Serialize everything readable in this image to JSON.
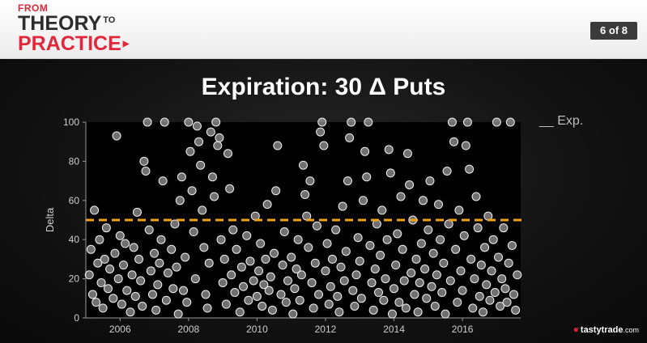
{
  "header": {
    "brand_from": "FROM",
    "brand_theory": "THEORY",
    "brand_to": "TO",
    "brand_practice": "PRACTICE",
    "pager": "6 of 8"
  },
  "footer": {
    "logo_text": "tastytrade",
    "logo_suffix": ".com"
  },
  "colors": {
    "accent": "#e0283c",
    "reference_line": "#f0a020",
    "points": "#d0d0d0"
  },
  "chart_data": {
    "type": "scatter",
    "title": "Expiration: 30 Δ Puts",
    "ylabel": "Delta",
    "xlabel": "",
    "xlim": [
      2005,
      2017.7
    ],
    "ylim": [
      0,
      100
    ],
    "xticks": [
      "2006",
      "2008",
      "2010",
      "2012",
      "2014",
      "2016"
    ],
    "xtick_values": [
      2006,
      2008,
      2010,
      2012,
      2014,
      2016
    ],
    "yticks": [
      "0",
      "20",
      "40",
      "60",
      "80",
      "100"
    ],
    "ytick_values": [
      0,
      20,
      40,
      60,
      80,
      100
    ],
    "reference_line": {
      "y": 50,
      "label": "__ Exp.",
      "style": "dashed"
    },
    "legend_position": "top-right",
    "grid": false,
    "points": [
      [
        2005.1,
        22
      ],
      [
        2005.15,
        35
      ],
      [
        2005.2,
        12
      ],
      [
        2005.25,
        55
      ],
      [
        2005.3,
        8
      ],
      [
        2005.35,
        28
      ],
      [
        2005.4,
        40
      ],
      [
        2005.45,
        18
      ],
      [
        2005.5,
        5
      ],
      [
        2005.55,
        30
      ],
      [
        2005.6,
        46
      ],
      [
        2005.65,
        15
      ],
      [
        2005.7,
        25
      ],
      [
        2005.8,
        10
      ],
      [
        2005.85,
        33
      ],
      [
        2005.9,
        93
      ],
      [
        2005.95,
        20
      ],
      [
        2006.0,
        42
      ],
      [
        2006.05,
        7
      ],
      [
        2006.1,
        27
      ],
      [
        2006.15,
        38
      ],
      [
        2006.2,
        14
      ],
      [
        2006.3,
        3
      ],
      [
        2006.35,
        22
      ],
      [
        2006.4,
        36
      ],
      [
        2006.45,
        11
      ],
      [
        2006.5,
        54
      ],
      [
        2006.55,
        30
      ],
      [
        2006.6,
        19
      ],
      [
        2006.65,
        6
      ],
      [
        2006.7,
        80
      ],
      [
        2006.75,
        75
      ],
      [
        2006.8,
        100
      ],
      [
        2006.85,
        45
      ],
      [
        2006.9,
        24
      ],
      [
        2006.95,
        12
      ],
      [
        2007.0,
        33
      ],
      [
        2007.05,
        4
      ],
      [
        2007.1,
        17
      ],
      [
        2007.15,
        28
      ],
      [
        2007.2,
        40
      ],
      [
        2007.25,
        70
      ],
      [
        2007.3,
        100
      ],
      [
        2007.35,
        9
      ],
      [
        2007.4,
        23
      ],
      [
        2007.5,
        35
      ],
      [
        2007.55,
        15
      ],
      [
        2007.6,
        48
      ],
      [
        2007.65,
        26
      ],
      [
        2007.7,
        2
      ],
      [
        2007.75,
        60
      ],
      [
        2007.8,
        72
      ],
      [
        2007.85,
        14
      ],
      [
        2007.9,
        31
      ],
      [
        2007.95,
        8
      ],
      [
        2008.0,
        100
      ],
      [
        2008.05,
        85
      ],
      [
        2008.1,
        65
      ],
      [
        2008.15,
        44
      ],
      [
        2008.2,
        20
      ],
      [
        2008.25,
        98
      ],
      [
        2008.3,
        90
      ],
      [
        2008.35,
        78
      ],
      [
        2008.4,
        55
      ],
      [
        2008.45,
        36
      ],
      [
        2008.5,
        12
      ],
      [
        2008.55,
        5
      ],
      [
        2008.6,
        28
      ],
      [
        2008.65,
        95
      ],
      [
        2008.7,
        72
      ],
      [
        2008.75,
        62
      ],
      [
        2008.8,
        100
      ],
      [
        2008.85,
        88
      ],
      [
        2008.9,
        92
      ],
      [
        2008.95,
        40
      ],
      [
        2009.0,
        18
      ],
      [
        2009.05,
        30
      ],
      [
        2009.1,
        7
      ],
      [
        2009.15,
        84
      ],
      [
        2009.2,
        66
      ],
      [
        2009.25,
        22
      ],
      [
        2009.3,
        45
      ],
      [
        2009.35,
        13
      ],
      [
        2009.4,
        35
      ],
      [
        2009.5,
        3
      ],
      [
        2009.55,
        26
      ],
      [
        2009.6,
        16
      ],
      [
        2009.7,
        42
      ],
      [
        2009.75,
        9
      ],
      [
        2009.8,
        29
      ],
      [
        2009.9,
        19
      ],
      [
        2009.95,
        52
      ],
      [
        2010.0,
        11
      ],
      [
        2010.05,
        24
      ],
      [
        2010.1,
        38
      ],
      [
        2010.15,
        6
      ],
      [
        2010.2,
        17
      ],
      [
        2010.25,
        30
      ],
      [
        2010.3,
        58
      ],
      [
        2010.35,
        14
      ],
      [
        2010.4,
        21
      ],
      [
        2010.45,
        4
      ],
      [
        2010.5,
        33
      ],
      [
        2010.55,
        65
      ],
      [
        2010.6,
        88
      ],
      [
        2010.7,
        12
      ],
      [
        2010.75,
        27
      ],
      [
        2010.8,
        44
      ],
      [
        2010.85,
        8
      ],
      [
        2010.9,
        19
      ],
      [
        2011.0,
        31
      ],
      [
        2011.05,
        2
      ],
      [
        2011.1,
        15
      ],
      [
        2011.15,
        25
      ],
      [
        2011.2,
        40
      ],
      [
        2011.25,
        9
      ],
      [
        2011.3,
        22
      ],
      [
        2011.35,
        78
      ],
      [
        2011.4,
        63
      ],
      [
        2011.45,
        52
      ],
      [
        2011.5,
        36
      ],
      [
        2011.55,
        70
      ],
      [
        2011.6,
        18
      ],
      [
        2011.65,
        5
      ],
      [
        2011.7,
        28
      ],
      [
        2011.75,
        47
      ],
      [
        2011.8,
        12
      ],
      [
        2011.85,
        95
      ],
      [
        2011.9,
        100
      ],
      [
        2011.95,
        88
      ],
      [
        2012.0,
        24
      ],
      [
        2012.05,
        38
      ],
      [
        2012.1,
        7
      ],
      [
        2012.15,
        16
      ],
      [
        2012.2,
        30
      ],
      [
        2012.3,
        45
      ],
      [
        2012.35,
        11
      ],
      [
        2012.4,
        3
      ],
      [
        2012.45,
        26
      ],
      [
        2012.5,
        57
      ],
      [
        2012.55,
        19
      ],
      [
        2012.6,
        34
      ],
      [
        2012.65,
        70
      ],
      [
        2012.7,
        92
      ],
      [
        2012.75,
        100
      ],
      [
        2012.8,
        14
      ],
      [
        2012.85,
        6
      ],
      [
        2012.9,
        22
      ],
      [
        2012.95,
        41
      ],
      [
        2013.0,
        29
      ],
      [
        2013.05,
        10
      ],
      [
        2013.1,
        60
      ],
      [
        2013.15,
        85
      ],
      [
        2013.2,
        72
      ],
      [
        2013.25,
        100
      ],
      [
        2013.3,
        37
      ],
      [
        2013.35,
        18
      ],
      [
        2013.4,
        4
      ],
      [
        2013.45,
        25
      ],
      [
        2013.5,
        48
      ],
      [
        2013.55,
        13
      ],
      [
        2013.6,
        32
      ],
      [
        2013.65,
        55
      ],
      [
        2013.7,
        9
      ],
      [
        2013.75,
        20
      ],
      [
        2013.8,
        40
      ],
      [
        2013.85,
        86
      ],
      [
        2013.9,
        74
      ],
      [
        2013.95,
        2
      ],
      [
        2014.0,
        15
      ],
      [
        2014.05,
        27
      ],
      [
        2014.1,
        43
      ],
      [
        2014.15,
        8
      ],
      [
        2014.2,
        62
      ],
      [
        2014.25,
        35
      ],
      [
        2014.3,
        19
      ],
      [
        2014.35,
        5
      ],
      [
        2014.4,
        84
      ],
      [
        2014.45,
        68
      ],
      [
        2014.5,
        23
      ],
      [
        2014.55,
        50
      ],
      [
        2014.6,
        12
      ],
      [
        2014.65,
        30
      ],
      [
        2014.7,
        3
      ],
      [
        2014.75,
        18
      ],
      [
        2014.8,
        38
      ],
      [
        2014.85,
        60
      ],
      [
        2014.9,
        25
      ],
      [
        2014.95,
        10
      ],
      [
        2015.0,
        45
      ],
      [
        2015.05,
        70
      ],
      [
        2015.1,
        16
      ],
      [
        2015.15,
        33
      ],
      [
        2015.2,
        6
      ],
      [
        2015.25,
        22
      ],
      [
        2015.3,
        58
      ],
      [
        2015.35,
        40
      ],
      [
        2015.4,
        13
      ],
      [
        2015.45,
        28
      ],
      [
        2015.5,
        2
      ],
      [
        2015.55,
        75
      ],
      [
        2015.6,
        48
      ],
      [
        2015.65,
        19
      ],
      [
        2015.7,
        100
      ],
      [
        2015.75,
        90
      ],
      [
        2015.8,
        35
      ],
      [
        2015.85,
        8
      ],
      [
        2015.9,
        55
      ],
      [
        2015.95,
        24
      ],
      [
        2016.0,
        14
      ],
      [
        2016.05,
        42
      ],
      [
        2016.1,
        88
      ],
      [
        2016.15,
        100
      ],
      [
        2016.2,
        76
      ],
      [
        2016.25,
        30
      ],
      [
        2016.3,
        5
      ],
      [
        2016.35,
        20
      ],
      [
        2016.4,
        62
      ],
      [
        2016.45,
        46
      ],
      [
        2016.5,
        11
      ],
      [
        2016.55,
        27
      ],
      [
        2016.6,
        3
      ],
      [
        2016.65,
        36
      ],
      [
        2016.7,
        17
      ],
      [
        2016.75,
        52
      ],
      [
        2016.8,
        9
      ],
      [
        2016.85,
        24
      ],
      [
        2016.9,
        40
      ],
      [
        2016.95,
        13
      ],
      [
        2017.0,
        100
      ],
      [
        2017.05,
        31
      ],
      [
        2017.1,
        6
      ],
      [
        2017.15,
        20
      ],
      [
        2017.2,
        46
      ],
      [
        2017.25,
        15
      ],
      [
        2017.3,
        8
      ],
      [
        2017.35,
        28
      ],
      [
        2017.4,
        100
      ],
      [
        2017.45,
        37
      ],
      [
        2017.5,
        12
      ],
      [
        2017.55,
        4
      ],
      [
        2017.6,
        22
      ]
    ]
  }
}
